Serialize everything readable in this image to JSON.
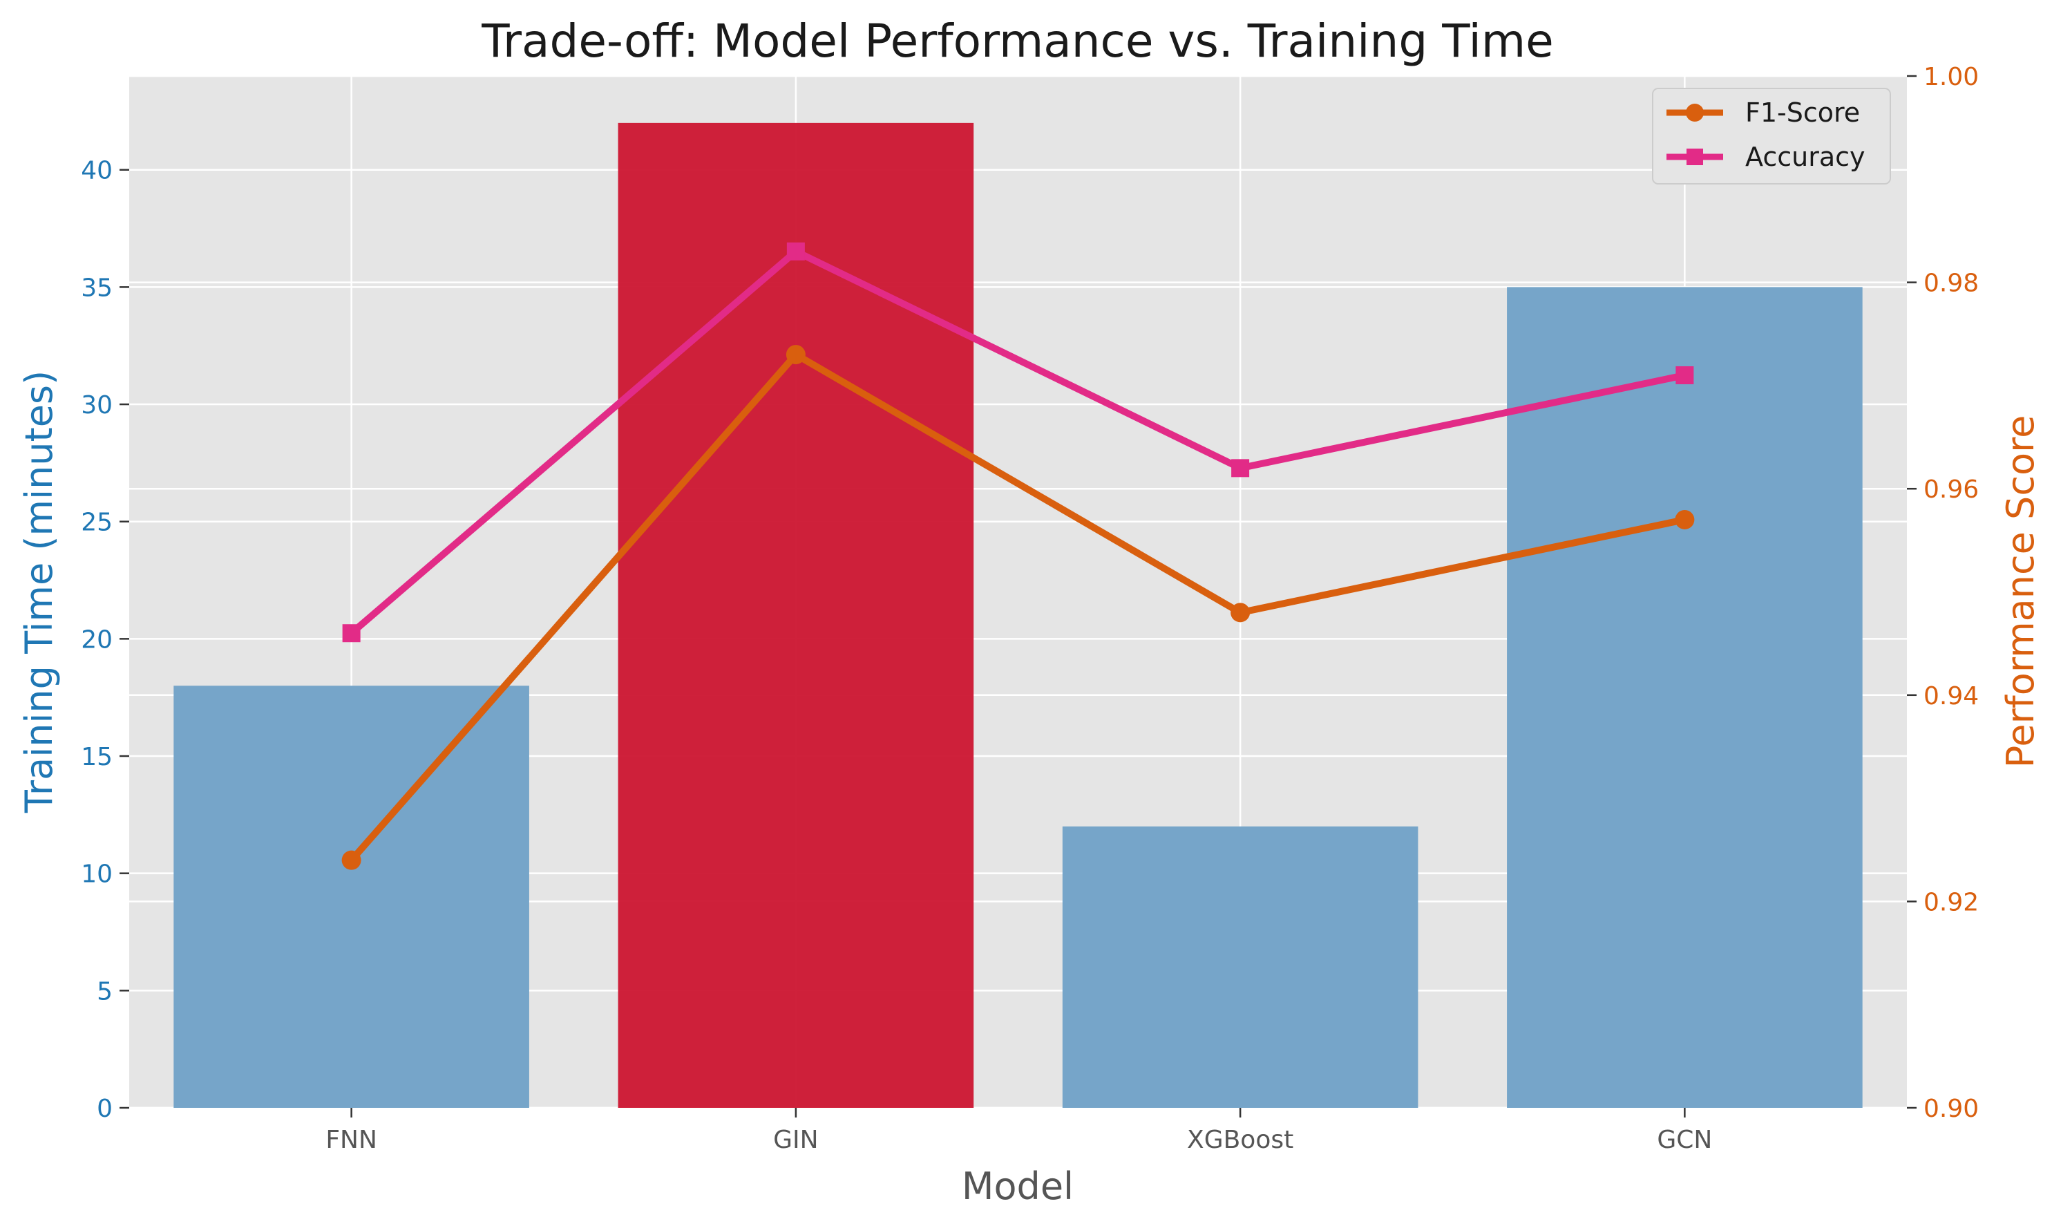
{
  "chart_data": {
    "type": "bar",
    "title": "Trade-off: Model Performance vs. Training Time",
    "xlabel": "Model",
    "ylabel": "Training Time (minutes)",
    "y2label": "Performance Score",
    "categories": [
      "FNN",
      "GIN",
      "XGBoost",
      "GCN"
    ],
    "bar_series": {
      "name": "Training Time",
      "values": [
        18,
        42,
        12,
        35
      ],
      "highlight_index": 1
    },
    "line_series": [
      {
        "name": "F1-Score",
        "marker": "circle",
        "values": [
          0.924,
          0.973,
          0.948,
          0.957
        ]
      },
      {
        "name": "Accuracy",
        "marker": "square",
        "values": [
          0.946,
          0.983,
          0.962,
          0.971
        ]
      }
    ],
    "ylim": [
      0,
      44
    ],
    "y2lim": [
      0.9,
      1.0
    ],
    "yticks": [
      "0",
      "5",
      "10",
      "15",
      "20",
      "25",
      "30",
      "35",
      "40"
    ],
    "y2ticks": [
      "0.90",
      "0.92",
      "0.94",
      "0.96",
      "0.98",
      "1.00"
    ],
    "grid": true,
    "legend_position": "top-right",
    "colors": {
      "bar": "#76a5c9",
      "bar_highlight": "#cc1530",
      "f1": "#d95f0e",
      "accuracy": "#e22b87",
      "left_axis": "#1f77b4",
      "right_axis": "#d95f0e",
      "plot_bg": "#e5e5e5",
      "grid": "#ffffff",
      "text_dark": "#555555"
    }
  }
}
